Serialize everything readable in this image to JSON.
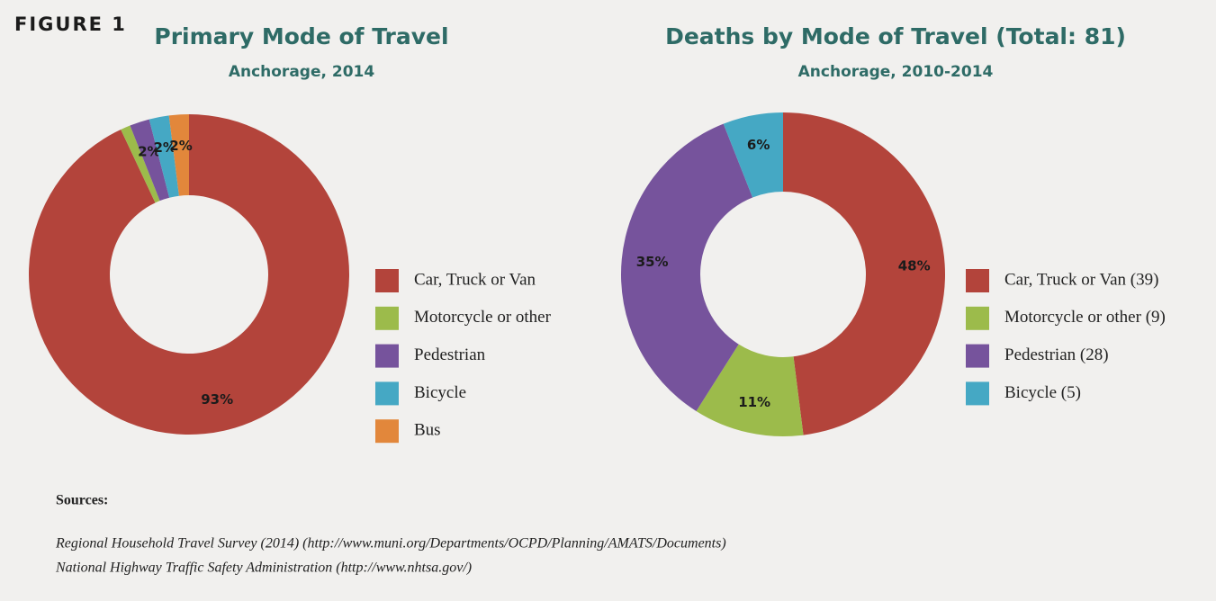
{
  "figure_label": "FIGURE 1",
  "chart_data": [
    {
      "type": "pie",
      "donut": true,
      "title": "Primary Mode of Travel",
      "subtitle": "Anchorage, 2014",
      "categories": [
        "Car, Truck or Van",
        "Motorcycle or other",
        "Pedestrian",
        "Bicycle",
        "Bus"
      ],
      "values": [
        93,
        1,
        2,
        2,
        2
      ],
      "value_labels": [
        "93%",
        null,
        "2%",
        "2%",
        "2%"
      ],
      "colors": [
        "#b3443b",
        "#9cbb4b",
        "#76539c",
        "#45a8c4",
        "#e2873b"
      ]
    },
    {
      "type": "pie",
      "donut": true,
      "title": "Deaths by Mode of Travel (Total: 81)",
      "subtitle": "Anchorage, 2010-2014",
      "categories": [
        "Car, Truck or Van (39)",
        "Motorcycle or other (9)",
        "Pedestrian (28)",
        "Bicycle (5)"
      ],
      "values": [
        48,
        11,
        35,
        6
      ],
      "value_labels": [
        "48%",
        "11%",
        "35%",
        "6%"
      ],
      "colors": [
        "#b3443b",
        "#9cbb4b",
        "#76539c",
        "#45a8c4"
      ]
    }
  ],
  "sources": {
    "heading": "Sources:",
    "items": [
      "Regional Household Travel Survey (2014) (http://www.muni.org/Departments/OCPD/Planning/AMATS/Documents)",
      "National Highway Traffic Safety Administration (http://www.nhtsa.gov/)"
    ]
  }
}
